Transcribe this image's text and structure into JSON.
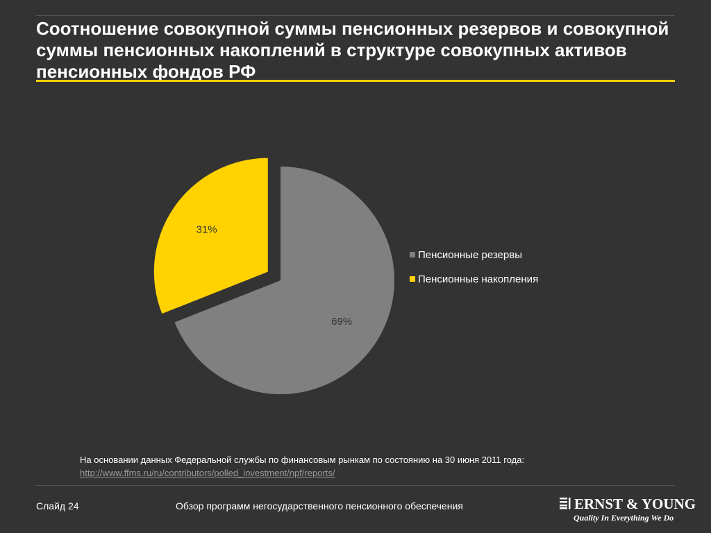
{
  "title": "Соотношение совокупной суммы пенсионных резервов и совокупной суммы пенсионных накоплений в структуре совокупных активов пенсионных фондов РФ",
  "colors": {
    "background": "#333333",
    "accent": "#ffd200",
    "grey_slice": "#808080",
    "yellow_slice": "#ffd200"
  },
  "chart_data": {
    "type": "pie",
    "slices": [
      {
        "name": "Пенсионные резервы",
        "value": 69,
        "label": "69%",
        "color": "#808080"
      },
      {
        "name": "Пенсионные накопления",
        "value": 31,
        "label": "31%",
        "color": "#ffd200",
        "exploded": true
      }
    ],
    "legend_position": "right"
  },
  "source": {
    "text": "На основании данных  Федеральной службы по финансовым рынкам по состоянию на 30 июня 2011 года:",
    "link": "http://www.ffms.ru/ru/contributors/polled_investment/npf/reports/"
  },
  "footer": {
    "slide": "Слайд 24",
    "caption": "Обзор программ негосударственного пенсионного обеспечения"
  },
  "logo": {
    "name": "ERNST & YOUNG",
    "tagline": "Quality In Everything We Do"
  }
}
